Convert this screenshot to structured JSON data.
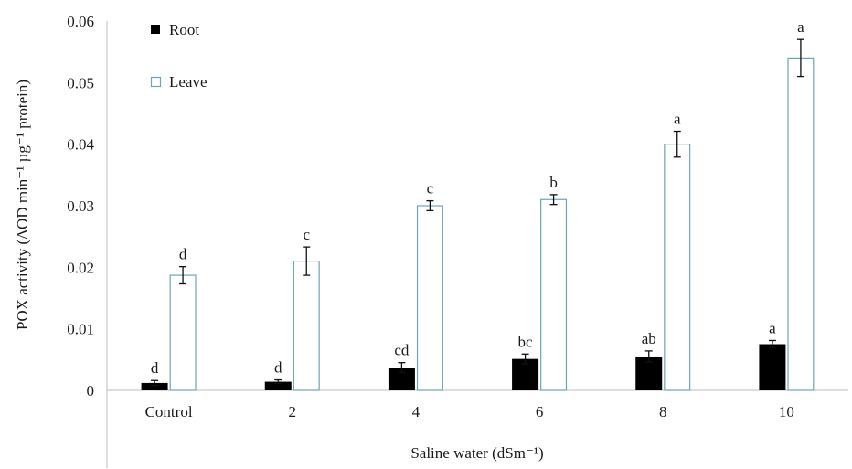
{
  "chart_data": {
    "type": "bar",
    "title": "",
    "xlabel": "Saline water (dSm⁻¹)",
    "ylabel": "POX activity (ΔOD min⁻¹ µg⁻¹ protein)",
    "ylim": [
      0,
      0.06
    ],
    "yticks": [
      "0",
      "0.01",
      "0.02",
      "0.03",
      "0.04",
      "0.05",
      "0.06"
    ],
    "categories": [
      "Control",
      "2",
      "4",
      "6",
      "8",
      "10"
    ],
    "legend_position": "top-left",
    "series": [
      {
        "name": "Root",
        "style": "filled",
        "color": "#000000",
        "values": [
          0.0012,
          0.0014,
          0.0037,
          0.0051,
          0.0055,
          0.0075
        ],
        "errors": [
          0.0004,
          0.0003,
          0.0008,
          0.0008,
          0.0009,
          0.0006
        ],
        "letters": [
          "d",
          "d",
          "cd",
          "bc",
          "ab",
          "a"
        ]
      },
      {
        "name": "Leave",
        "style": "outline",
        "color": "#6aa6b4",
        "values": [
          0.0187,
          0.021,
          0.03,
          0.031,
          0.04,
          0.054
        ],
        "errors": [
          0.0014,
          0.0023,
          0.0008,
          0.0008,
          0.0021,
          0.003
        ],
        "letters": [
          "d",
          "c",
          "c",
          "b",
          "a",
          "a"
        ]
      }
    ]
  }
}
